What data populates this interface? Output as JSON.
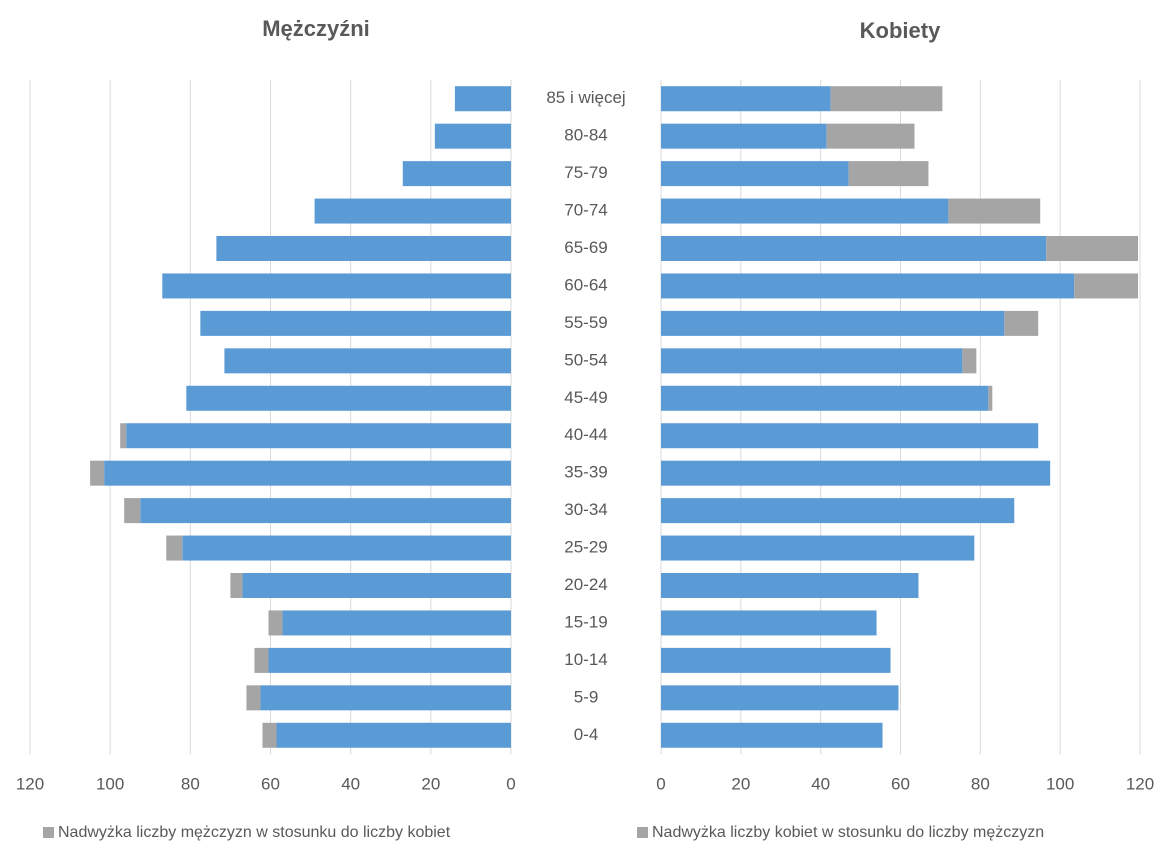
{
  "chart_data": [
    {
      "type": "bar",
      "orientation": "horizontal",
      "stacked": true,
      "x_reversed": true,
      "title": "Mężczyźni",
      "categories": [
        "85 i więcej",
        "80-84",
        "75-79",
        "70-74",
        "65-69",
        "60-64",
        "55-59",
        "50-54",
        "45-49",
        "40-44",
        "35-39",
        "30-34",
        "25-29",
        "20-24",
        "15-19",
        "10-14",
        "5-9",
        "0-4"
      ],
      "series": [
        {
          "color": "#5b9bd5",
          "values": [
            14,
            19,
            27,
            49,
            73.5,
            87,
            77.5,
            71.5,
            81,
            96,
            101.5,
            92.5,
            82,
            67,
            57,
            60.5,
            62.5,
            58.5
          ]
        },
        {
          "name": "Nadwyżka liczby mężczyzn w stosunku do liczby kobiet",
          "color": "#a5a5a5",
          "values": [
            0,
            0,
            0,
            0,
            0,
            0,
            0,
            0,
            0,
            1.5,
            3.5,
            4,
            4,
            3,
            3.5,
            3.5,
            3.5,
            3.5
          ]
        }
      ],
      "xlim": [
        0,
        120
      ],
      "xticks": [
        0,
        20,
        40,
        60,
        80,
        100,
        120
      ],
      "grid": true
    },
    {
      "type": "bar",
      "orientation": "horizontal",
      "stacked": true,
      "x_reversed": false,
      "title": "Kobiety",
      "series": [
        {
          "color": "#5b9bd5",
          "values": [
            42.5,
            41.5,
            47,
            72,
            96.5,
            103.5,
            86,
            75.5,
            82,
            94.5,
            97.5,
            88.5,
            78.5,
            64.5,
            54,
            57.5,
            59.5,
            55.5
          ]
        },
        {
          "name": "Nadwyżka liczby kobiet w stosunku do liczby mężczyzn",
          "color": "#a5a5a5",
          "values": [
            28,
            22,
            20,
            23,
            23,
            16,
            8.5,
            3.5,
            1,
            0,
            0,
            0,
            0,
            0,
            0,
            0,
            0,
            0
          ]
        }
      ],
      "xlim": [
        0,
        120
      ],
      "xticks": [
        0,
        20,
        40,
        60,
        80,
        100,
        120
      ],
      "grid": true
    }
  ]
}
